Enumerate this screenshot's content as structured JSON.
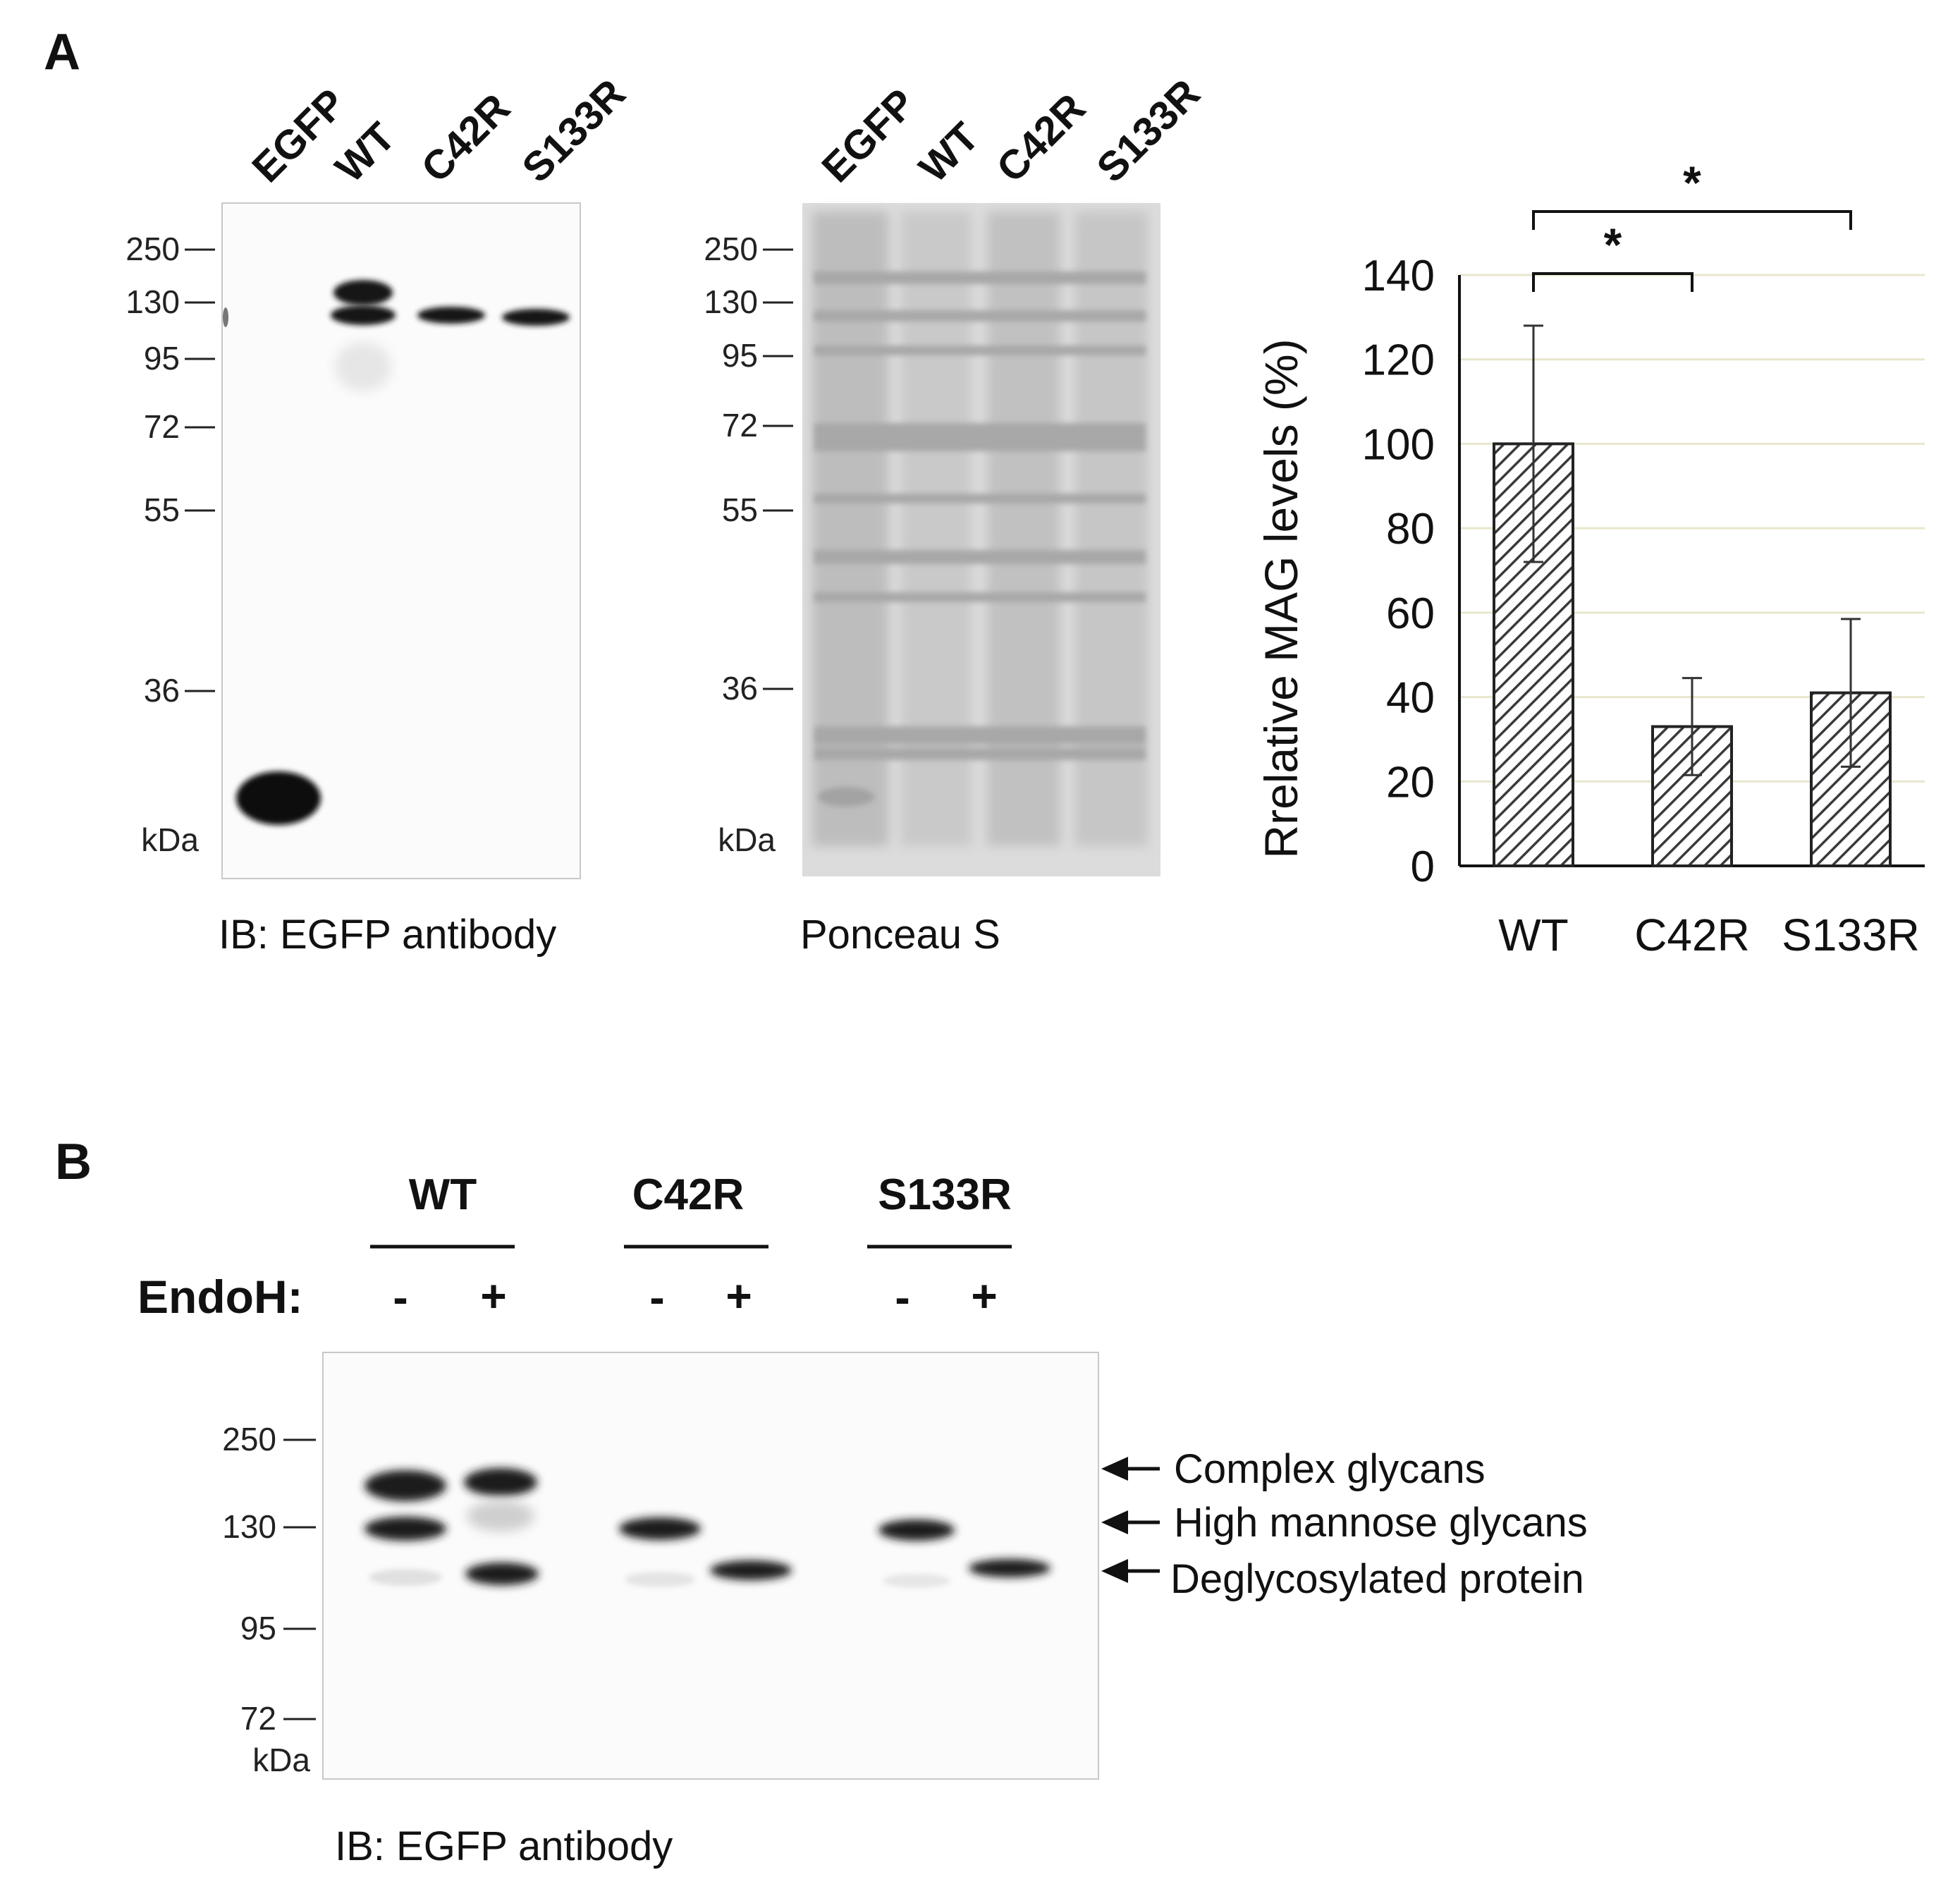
{
  "panel_a": {
    "letter": "A",
    "blot1": {
      "lanes": [
        "EGFP",
        "WT",
        "C42R",
        "S133R"
      ],
      "markers": [
        "250",
        "130",
        "95",
        "72",
        "55",
        "36"
      ],
      "kda": "kDa",
      "caption": "IB: EGFP antibody"
    },
    "blot2": {
      "lanes": [
        "EGFP",
        "WT",
        "C42R",
        "S133R"
      ],
      "markers": [
        "250",
        "130",
        "95",
        "72",
        "55",
        "36"
      ],
      "kda": "kDa",
      "caption": "Ponceau S"
    }
  },
  "chart_data": {
    "type": "bar",
    "categories": [
      "WT",
      "C42R",
      "S133R"
    ],
    "values": [
      100,
      33,
      41
    ],
    "errors": [
      28,
      11.5,
      17.5
    ],
    "ylabel": "Rrelative MAG levels (%)",
    "xlabel": "",
    "ylim": [
      0,
      140
    ],
    "yticks": [
      0,
      20,
      40,
      60,
      80,
      100,
      120,
      140
    ],
    "ytick_labels": [
      "0",
      "20",
      "40",
      "60",
      "80",
      "100",
      "120",
      "140"
    ],
    "grid": true,
    "bar_pattern": "diagonal hatch",
    "significance": [
      {
        "pair": [
          "WT",
          "C42R"
        ],
        "label": "*"
      },
      {
        "pair": [
          "WT",
          "S133R"
        ],
        "label": "*"
      }
    ]
  },
  "panel_b": {
    "letter": "B",
    "groups": [
      "WT",
      "C42R",
      "S133R"
    ],
    "endoh_label": "EndoH:",
    "treatments": [
      "-",
      "+",
      "-",
      "+",
      "-",
      "+"
    ],
    "markers": [
      "250",
      "130",
      "95",
      "72"
    ],
    "kda": "kDa",
    "annotations": [
      "Complex glycans",
      "High mannose glycans",
      "Deglycosylated protein"
    ],
    "caption": "IB: EGFP antibody"
  },
  "colors": {
    "band": "#141414",
    "gel_bg": "#fbfbfb",
    "ponceau_bg": "#d9d9d9",
    "grid": "#e8e6cc",
    "bar_fill": "#ffffff",
    "bar_hatch": "#3a3a3a"
  }
}
